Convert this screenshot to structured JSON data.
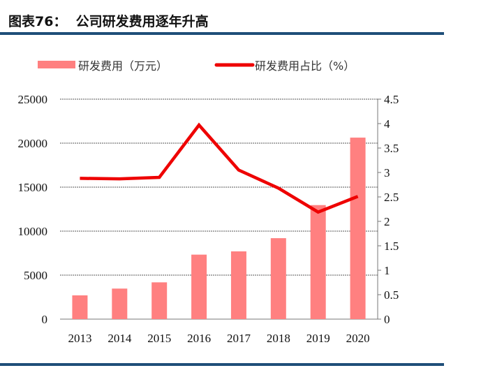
{
  "header": {
    "title": "图表76：  公司研发费用逐年升高"
  },
  "chart_data": {
    "type": "bar+line",
    "categories": [
      "2013",
      "2014",
      "2015",
      "2016",
      "2017",
      "2018",
      "2019",
      "2020"
    ],
    "series": [
      {
        "name": "研发费用（万元）",
        "type": "bar",
        "axis": "left",
        "color": "#ff8080",
        "values": [
          2700,
          3470,
          4180,
          7330,
          7700,
          9200,
          12960,
          20630
        ]
      },
      {
        "name": "研发费用占比（%）",
        "type": "line",
        "axis": "right",
        "color": "#ee0000",
        "values": [
          2.88,
          2.87,
          2.9,
          3.97,
          3.05,
          2.68,
          2.19,
          2.51
        ]
      }
    ],
    "y_left": {
      "min": 0,
      "max": 25000,
      "ticks": [
        "0",
        "5000",
        "10000",
        "15000",
        "20000",
        "25000"
      ]
    },
    "y_right": {
      "min": 0,
      "max": 4.5,
      "ticks": [
        "0",
        "0.5",
        "1",
        "1.5",
        "2",
        "2.5",
        "3",
        "3.5",
        "4",
        "4.5"
      ]
    },
    "grid": "horizontal dotted",
    "legend": "top"
  }
}
